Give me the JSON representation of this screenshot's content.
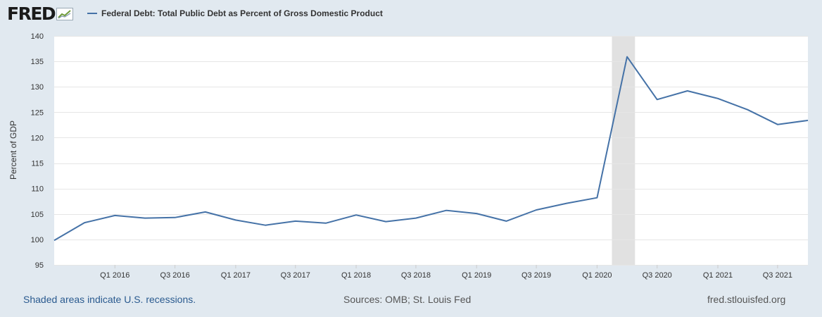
{
  "header": {
    "logo_text": "FRED",
    "legend_label": "Federal Debt: Total Public Debt as Percent of Gross Domestic Product"
  },
  "footer": {
    "left": "Shaded areas indicate U.S. recessions.",
    "center": "Sources: OMB; St. Louis Fed",
    "right": "fred.stlouisfed.org"
  },
  "colors": {
    "series": "#4572a7",
    "recession": "#e1e1e1",
    "page_background": "#e1e9f0",
    "plot_background": "#ffffff",
    "gridline": "#e6e6e6"
  },
  "chart_data": {
    "type": "line",
    "title": "Federal Debt: Total Public Debt as Percent of Gross Domestic Product",
    "xlabel": "",
    "ylabel": "Percent of GDP",
    "ylim": [
      95,
      140
    ],
    "yticks": [
      95,
      100,
      105,
      110,
      115,
      120,
      125,
      130,
      135,
      140
    ],
    "xlim": [
      "2015-07-01",
      "2021-10-01"
    ],
    "xticks": [
      {
        "label": "Q1 2016",
        "date": "2016-01-01"
      },
      {
        "label": "Q3 2016",
        "date": "2016-07-01"
      },
      {
        "label": "Q1 2017",
        "date": "2017-01-01"
      },
      {
        "label": "Q3 2017",
        "date": "2017-07-01"
      },
      {
        "label": "Q1 2018",
        "date": "2018-01-01"
      },
      {
        "label": "Q3 2018",
        "date": "2018-07-01"
      },
      {
        "label": "Q1 2019",
        "date": "2019-01-01"
      },
      {
        "label": "Q3 2019",
        "date": "2019-07-01"
      },
      {
        "label": "Q1 2020",
        "date": "2020-01-01"
      },
      {
        "label": "Q3 2020",
        "date": "2020-07-01"
      },
      {
        "label": "Q1 2021",
        "date": "2021-01-01"
      },
      {
        "label": "Q3 2021",
        "date": "2021-07-01"
      }
    ],
    "grid": true,
    "legend": "top-left",
    "recessions": [
      {
        "start": "2020-02-15",
        "end": "2020-04-25"
      }
    ],
    "series": [
      {
        "name": "Federal Debt: Total Public Debt as Percent of Gross Domestic Product",
        "color": "#4572a7",
        "points": [
          {
            "x": "2015-07-01",
            "y": 99.8
          },
          {
            "x": "2015-10-01",
            "y": 103.3
          },
          {
            "x": "2016-01-01",
            "y": 104.7
          },
          {
            "x": "2016-04-01",
            "y": 104.2
          },
          {
            "x": "2016-07-01",
            "y": 104.3
          },
          {
            "x": "2016-10-01",
            "y": 105.4
          },
          {
            "x": "2017-01-01",
            "y": 103.8
          },
          {
            "x": "2017-04-01",
            "y": 102.8
          },
          {
            "x": "2017-07-01",
            "y": 103.6
          },
          {
            "x": "2017-10-01",
            "y": 103.2
          },
          {
            "x": "2018-01-01",
            "y": 104.8
          },
          {
            "x": "2018-04-01",
            "y": 103.5
          },
          {
            "x": "2018-07-01",
            "y": 104.2
          },
          {
            "x": "2018-10-01",
            "y": 105.7
          },
          {
            "x": "2019-01-01",
            "y": 105.1
          },
          {
            "x": "2019-04-01",
            "y": 103.6
          },
          {
            "x": "2019-07-01",
            "y": 105.8
          },
          {
            "x": "2019-10-01",
            "y": 107.1
          },
          {
            "x": "2020-01-01",
            "y": 108.2
          },
          {
            "x": "2020-04-01",
            "y": 135.9
          },
          {
            "x": "2020-07-01",
            "y": 127.5
          },
          {
            "x": "2020-10-01",
            "y": 129.2
          },
          {
            "x": "2021-01-01",
            "y": 127.7
          },
          {
            "x": "2021-04-01",
            "y": 125.5
          },
          {
            "x": "2021-07-01",
            "y": 122.6
          },
          {
            "x": "2021-10-01",
            "y": 123.4
          }
        ]
      }
    ]
  }
}
